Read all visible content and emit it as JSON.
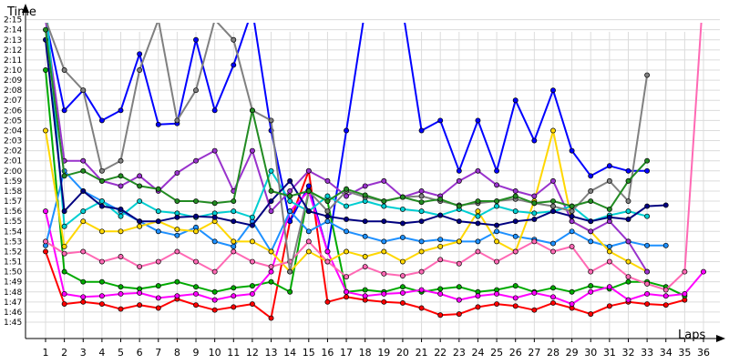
{
  "chart_data": {
    "type": "line",
    "ylabel": "Time",
    "xlabel": "Laps",
    "x": [
      1,
      2,
      3,
      4,
      5,
      6,
      7,
      8,
      9,
      10,
      11,
      12,
      13,
      14,
      15,
      16,
      17,
      18,
      19,
      20,
      21,
      22,
      23,
      24,
      25,
      26,
      27,
      28,
      29,
      30,
      31,
      32,
      33,
      34,
      35,
      36
    ],
    "xticks": [
      "1",
      "2",
      "3",
      "4",
      "5",
      "6",
      "7",
      "8",
      "9",
      "10",
      "11",
      "12",
      "13",
      "14",
      "15",
      "16",
      "17",
      "18",
      "19",
      "20",
      "21",
      "22",
      "23",
      "24",
      "25",
      "26",
      "27",
      "28",
      "29",
      "30",
      "31",
      "32",
      "33",
      "34",
      "35",
      "36"
    ],
    "ytick_labels": [
      "1:45",
      "1:46",
      "1:47",
      "1:48",
      "1:49",
      "1:50",
      "1:51",
      "1:52",
      "1:53",
      "1:54",
      "1:55",
      "1:56",
      "1:57",
      "1:58",
      "1:59",
      "2:00",
      "2:01",
      "2:02",
      "2:03",
      "2:04",
      "2:05",
      "2:06",
      "2:07",
      "2:08",
      "2:09",
      "2:10",
      "2:11",
      "2:12",
      "2:13",
      "2:14",
      "2:15"
    ],
    "yunit": "seconds",
    "ylim": [
      104,
      138
    ],
    "xlim": [
      1,
      36
    ],
    "grid": true,
    "series": [
      {
        "color": "#ff0000",
        "values": [
          112.0,
          106.8,
          107.0,
          106.8,
          106.3,
          106.7,
          106.4,
          107.3,
          106.7,
          106.2,
          106.5,
          106.8,
          105.4,
          115.0,
          120.0,
          107.0,
          107.5,
          107.2,
          107.0,
          106.9,
          106.4,
          105.7,
          105.8,
          106.5,
          106.8,
          106.6,
          106.2,
          106.9,
          106.4,
          105.8,
          106.6,
          107.0,
          106.8,
          106.7,
          107.2,
          null
        ]
      },
      {
        "color": "#0000ff",
        "values": [
          135.0,
          126.0,
          128.0,
          125.0,
          126.0,
          131.6,
          124.6,
          124.7,
          133.0,
          126.0,
          130.5,
          136.0,
          124.0,
          115.0,
          118.5,
          112.0,
          124.0,
          136.0,
          135.6,
          136.0,
          124.0,
          125.0,
          120.0,
          125.0,
          120.0,
          127.0,
          123.0,
          128.0,
          122.0,
          119.5,
          120.5,
          120.0,
          120.0,
          null,
          null,
          null
        ]
      },
      {
        "color": "#00aa00",
        "values": [
          130.0,
          110.0,
          109.0,
          109.0,
          108.5,
          108.3,
          108.6,
          109.0,
          108.5,
          108.0,
          108.4,
          108.6,
          109.0,
          108.0,
          118.0,
          117.0,
          108.0,
          108.2,
          108.0,
          108.5,
          108.0,
          108.3,
          108.5,
          108.0,
          108.2,
          108.6,
          108.0,
          108.4,
          108.0,
          108.6,
          108.3,
          109.0,
          109.0,
          108.5,
          107.6,
          null
        ]
      },
      {
        "color": "#ff00ff",
        "values": [
          116.0,
          107.8,
          107.5,
          107.6,
          107.8,
          107.9,
          107.4,
          107.6,
          107.8,
          107.2,
          107.6,
          107.8,
          110.0,
          116.0,
          118.0,
          112.0,
          108.0,
          107.6,
          107.8,
          107.9,
          108.2,
          107.8,
          107.2,
          107.6,
          107.8,
          107.4,
          107.9,
          107.5,
          106.8,
          108.0,
          108.5,
          107.2,
          107.8,
          107.6,
          107.8,
          110.0
        ]
      },
      {
        "color": "#1e90ff",
        "values": [
          112.6,
          120.0,
          118.0,
          117.0,
          116.0,
          115.0,
          114.0,
          113.6,
          114.4,
          113.0,
          112.5,
          115.0,
          112.0,
          116.0,
          114.0,
          115.0,
          114.0,
          113.5,
          113.0,
          113.4,
          113.0,
          113.2,
          113.0,
          113.0,
          114.0,
          113.5,
          113.2,
          112.8,
          114.0,
          113.0,
          112.5,
          113.0,
          112.6,
          112.6,
          null,
          null
        ]
      },
      {
        "color": "#ffd700",
        "values": [
          124.0,
          112.5,
          115.0,
          114.0,
          114.0,
          114.5,
          115.0,
          114.2,
          114.0,
          115.0,
          113.0,
          113.0,
          112.0,
          110.0,
          112.0,
          111.0,
          112.0,
          111.5,
          112.0,
          111.0,
          112.0,
          112.5,
          113.0,
          116.0,
          113.0,
          112.0,
          117.0,
          124.0,
          115.0,
          114.0,
          112.0,
          111.0,
          110.0,
          null,
          null,
          null
        ]
      },
      {
        "color": "#ff69b4",
        "values": [
          113.0,
          111.8,
          112.0,
          111.0,
          111.5,
          110.5,
          111.0,
          112.0,
          111.0,
          110.0,
          112.0,
          111.0,
          110.5,
          111.0,
          113.0,
          111.0,
          109.5,
          110.5,
          109.8,
          109.6,
          110.0,
          111.2,
          110.8,
          112.0,
          111.0,
          112.0,
          113.0,
          112.0,
          112.5,
          110.0,
          111.0,
          109.5,
          108.8,
          108.2,
          110.0,
          138.0
        ]
      },
      {
        "color": "#9932cc",
        "values": [
          135.0,
          121.0,
          121.0,
          119.0,
          118.5,
          119.5,
          118.0,
          119.8,
          121.0,
          122.0,
          118.0,
          122.0,
          116.0,
          118.0,
          120.0,
          119.0,
          117.5,
          118.5,
          119.0,
          117.4,
          118.0,
          117.5,
          119.0,
          120.0,
          118.6,
          118.0,
          117.5,
          119.0,
          115.0,
          114.0,
          115.0,
          113.0,
          110.0,
          null,
          null,
          null
        ]
      },
      {
        "color": "#00ced1",
        "values": [
          137.0,
          114.5,
          116.0,
          117.0,
          115.5,
          117.0,
          116.0,
          115.8,
          115.4,
          115.8,
          116.0,
          115.4,
          120.0,
          117.0,
          116.0,
          117.5,
          116.5,
          117.0,
          116.5,
          116.2,
          116.0,
          115.6,
          116.2,
          115.5,
          116.5,
          116.0,
          115.8,
          116.0,
          116.5,
          115.0,
          115.6,
          116.0,
          115.5,
          null,
          null,
          null
        ]
      },
      {
        "color": "#808080",
        "values": [
          135.0,
          130.0,
          128.0,
          120.0,
          121.0,
          130.0,
          135.0,
          125.0,
          128.0,
          135.0,
          133.0,
          126.0,
          125.0,
          110.0,
          118.0,
          116.0,
          118.0,
          117.4,
          117.0,
          117.4,
          117.5,
          117.0,
          116.6,
          116.8,
          117.0,
          117.2,
          116.8,
          116.5,
          116.0,
          118.0,
          119.0,
          117.0,
          129.5,
          null,
          null,
          null
        ]
      },
      {
        "color": "#000080",
        "values": [
          133.0,
          116.0,
          118.0,
          116.5,
          116.2,
          115.0,
          115.0,
          115.4,
          115.5,
          115.4,
          115.0,
          114.6,
          117.0,
          119.0,
          116.0,
          115.5,
          115.2,
          115.0,
          115.0,
          114.8,
          115.0,
          115.6,
          115.0,
          114.8,
          114.6,
          115.0,
          115.2,
          116.0,
          115.5,
          115.0,
          115.4,
          115.2,
          116.5,
          116.6,
          null,
          null
        ]
      },
      {
        "color": "#228b22",
        "values": [
          134.0,
          119.5,
          120.0,
          119.0,
          119.5,
          118.5,
          118.2,
          117.0,
          117.0,
          116.8,
          117.0,
          126.0,
          118.0,
          117.5,
          118.0,
          117.0,
          118.2,
          117.6,
          117.0,
          117.4,
          116.9,
          117.2,
          116.5,
          117.0,
          117.0,
          117.5,
          116.8,
          117.0,
          116.5,
          117.0,
          116.2,
          119.0,
          121.0,
          null,
          null,
          null
        ]
      }
    ]
  }
}
